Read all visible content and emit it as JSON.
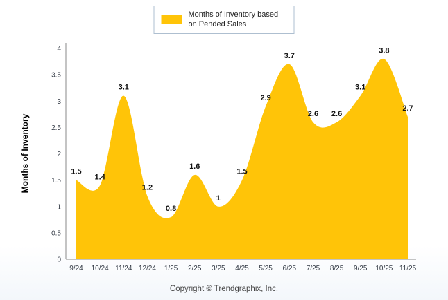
{
  "legend": {
    "label": "Months of Inventory based on Pended Sales"
  },
  "footer": {
    "copyright": "Copyright © Trendgraphix, Inc."
  },
  "colors": {
    "series": "#FFC408",
    "axis": "#8a8a8a",
    "legend_border": "#aebfd0"
  },
  "chart_data": {
    "type": "area",
    "categories": [
      "9/24",
      "10/24",
      "11/24",
      "12/24",
      "1/25",
      "2/25",
      "3/25",
      "4/25",
      "5/25",
      "6/25",
      "7/25",
      "8/25",
      "9/25",
      "10/25",
      "11/25"
    ],
    "values": [
      1.5,
      1.4,
      3.1,
      1.2,
      0.8,
      1.6,
      1,
      1.5,
      2.9,
      3.7,
      2.6,
      2.6,
      3.1,
      3.8,
      2.7
    ],
    "series_name": "Months of Inventory based on Pended Sales",
    "title": "",
    "xlabel": "",
    "ylabel": "Months of Inventory",
    "ylim": [
      0,
      4
    ],
    "y_ticks": [
      0,
      0.5,
      1,
      1.5,
      2,
      2.5,
      3,
      3.5,
      4
    ],
    "grid": false,
    "legend_position": "top"
  }
}
